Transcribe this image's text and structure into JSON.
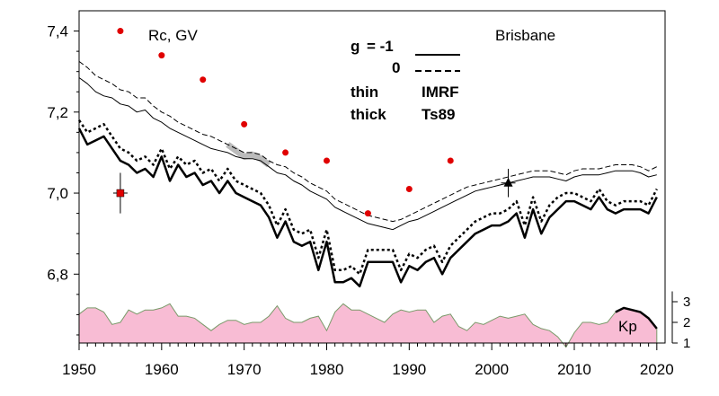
{
  "chart_data": {
    "type": "line",
    "title": "",
    "xlabel": "",
    "ylabel": "",
    "annotation_units": "Rc, GV",
    "station": "Brisbane",
    "kp_label": "Kp",
    "xlim": [
      1950,
      2021
    ],
    "ylim": [
      6.63,
      7.45
    ],
    "x_ticks": [
      "1950",
      "1960",
      "1970",
      "1980",
      "1990",
      "2000",
      "2010",
      "2020"
    ],
    "y_ticks": [
      "6,8",
      "7,0",
      "7,2",
      "7,4"
    ],
    "y_tick_values": [
      6.8,
      7.0,
      7.2,
      7.4
    ],
    "kp_ticks": [
      "1",
      "2",
      "3"
    ],
    "kp_range": [
      1,
      3.6
    ],
    "legend": {
      "row1": {
        "label": "g",
        "value": "= -1"
      },
      "row2": {
        "value": "0"
      },
      "row3": {
        "label": "thin",
        "model": "IMRF"
      },
      "row4": {
        "label": "thick",
        "model": "Ts89"
      }
    },
    "years": [
      1950,
      1951,
      1952,
      1953,
      1954,
      1955,
      1956,
      1957,
      1958,
      1959,
      1960,
      1961,
      1962,
      1963,
      1964,
      1965,
      1966,
      1967,
      1968,
      1969,
      1970,
      1971,
      1972,
      1973,
      1974,
      1975,
      1976,
      1977,
      1978,
      1979,
      1980,
      1981,
      1982,
      1983,
      1984,
      1985,
      1986,
      1987,
      1988,
      1989,
      1990,
      1991,
      1992,
      1993,
      1994,
      1995,
      1996,
      1997,
      1998,
      1999,
      2000,
      2001,
      2002,
      2003,
      2004,
      2005,
      2006,
      2007,
      2008,
      2009,
      2010,
      2011,
      2012,
      2013,
      2014,
      2015,
      2016,
      2017,
      2018,
      2019,
      2020
    ],
    "series": [
      {
        "name": "thin IMRF g=-1",
        "style": "thin-solid",
        "values": [
          7.285,
          7.27,
          7.25,
          7.24,
          7.235,
          7.22,
          7.215,
          7.2,
          7.205,
          7.185,
          7.175,
          7.16,
          7.15,
          7.14,
          7.13,
          7.12,
          7.11,
          7.105,
          7.1,
          7.09,
          7.085,
          7.085,
          7.08,
          7.065,
          7.05,
          7.045,
          7.03,
          7.02,
          7.005,
          6.995,
          6.985,
          6.965,
          6.955,
          6.945,
          6.935,
          6.925,
          6.92,
          6.915,
          6.91,
          6.92,
          6.93,
          6.935,
          6.945,
          6.955,
          6.965,
          6.975,
          6.985,
          6.995,
          7.005,
          7.01,
          7.015,
          7.02,
          7.025,
          7.03,
          7.035,
          7.04,
          7.04,
          7.04,
          7.035,
          7.03,
          7.04,
          7.045,
          7.045,
          7.045,
          7.05,
          7.055,
          7.055,
          7.055,
          7.05,
          7.04,
          7.045
        ]
      },
      {
        "name": "thin IMRF g=0",
        "style": "thin-dashed",
        "values": [
          7.325,
          7.31,
          7.29,
          7.28,
          7.27,
          7.255,
          7.25,
          7.235,
          7.235,
          7.215,
          7.2,
          7.19,
          7.175,
          7.165,
          7.155,
          7.145,
          7.14,
          7.13,
          7.12,
          7.11,
          7.1,
          7.1,
          7.095,
          7.08,
          7.07,
          7.065,
          7.05,
          7.04,
          7.025,
          7.015,
          7.005,
          6.985,
          6.975,
          6.965,
          6.955,
          6.945,
          6.94,
          6.935,
          6.93,
          6.935,
          6.945,
          6.955,
          6.965,
          6.975,
          6.985,
          6.995,
          7.005,
          7.015,
          7.02,
          7.025,
          7.03,
          7.035,
          7.04,
          7.045,
          7.05,
          7.055,
          7.055,
          7.055,
          7.05,
          7.045,
          7.055,
          7.06,
          7.06,
          7.06,
          7.065,
          7.07,
          7.07,
          7.07,
          7.065,
          7.055,
          7.065
        ]
      },
      {
        "name": "thick Ts89 g=-1",
        "style": "thick-solid",
        "values": [
          7.16,
          7.12,
          7.13,
          7.14,
          7.11,
          7.08,
          7.07,
          7.05,
          7.06,
          7.04,
          7.09,
          7.03,
          7.07,
          7.04,
          7.05,
          7.02,
          7.03,
          7.0,
          7.03,
          7.0,
          6.99,
          6.98,
          6.97,
          6.94,
          6.89,
          6.93,
          6.88,
          6.87,
          6.88,
          6.81,
          6.88,
          6.78,
          6.78,
          6.79,
          6.77,
          6.83,
          6.83,
          6.83,
          6.83,
          6.78,
          6.82,
          6.81,
          6.83,
          6.84,
          6.8,
          6.84,
          6.86,
          6.88,
          6.9,
          6.91,
          6.92,
          6.92,
          6.93,
          6.95,
          6.89,
          6.96,
          6.9,
          6.94,
          6.96,
          6.98,
          6.98,
          6.97,
          6.96,
          6.99,
          6.96,
          6.95,
          6.96,
          6.96,
          6.96,
          6.95,
          6.99
        ]
      },
      {
        "name": "thick Ts89 g=0",
        "style": "thick-dotted",
        "values": [
          7.18,
          7.15,
          7.16,
          7.17,
          7.14,
          7.11,
          7.1,
          7.08,
          7.09,
          7.07,
          7.11,
          7.06,
          7.09,
          7.07,
          7.08,
          7.05,
          7.06,
          7.03,
          7.06,
          7.03,
          7.02,
          7.01,
          7.0,
          6.97,
          6.92,
          6.96,
          6.91,
          6.9,
          6.91,
          6.84,
          6.91,
          6.81,
          6.81,
          6.82,
          6.8,
          6.86,
          6.86,
          6.86,
          6.86,
          6.81,
          6.85,
          6.84,
          6.86,
          6.87,
          6.83,
          6.87,
          6.89,
          6.91,
          6.93,
          6.94,
          6.95,
          6.95,
          6.96,
          6.98,
          6.92,
          6.99,
          6.93,
          6.97,
          6.99,
          7.0,
          7.0,
          6.99,
          6.98,
          7.01,
          6.98,
          6.97,
          6.98,
          6.98,
          6.98,
          6.97,
          7.01
        ]
      },
      {
        "name": "thick highlight",
        "style": "highlight-gray",
        "values_x": [
          1968,
          1969,
          1970,
          1971,
          1972,
          1973
        ],
        "values": [
          7.12,
          7.105,
          7.09,
          7.095,
          7.085,
          7.07
        ]
      }
    ],
    "rc_points": {
      "x": [
        1955,
        1960,
        1965,
        1970,
        1975,
        1980,
        1985,
        1990,
        1995
      ],
      "y": [
        7.4,
        7.34,
        7.28,
        7.17,
        7.1,
        7.08,
        6.95,
        7.01,
        7.08
      ]
    },
    "red_square": {
      "x": 1955,
      "y": 7.0,
      "err_low": 6.95,
      "err_high": 7.05
    },
    "black_triangle": {
      "x": 2002,
      "y": 7.025,
      "err_low": 6.99,
      "err_high": 7.06
    },
    "kp": {
      "years": [
        1950,
        1951,
        1952,
        1953,
        1954,
        1955,
        1956,
        1957,
        1958,
        1959,
        1960,
        1961,
        1962,
        1963,
        1964,
        1965,
        1966,
        1967,
        1968,
        1969,
        1970,
        1971,
        1972,
        1973,
        1974,
        1975,
        1976,
        1977,
        1978,
        1979,
        1980,
        1981,
        1982,
        1983,
        1984,
        1985,
        1986,
        1987,
        1988,
        1989,
        1990,
        1991,
        1992,
        1993,
        1994,
        1995,
        1996,
        1997,
        1998,
        1999,
        2000,
        2001,
        2002,
        2003,
        2004,
        2005,
        2006,
        2007,
        2008,
        2009,
        2010,
        2011,
        2012,
        2013,
        2014,
        2015,
        2016,
        2017,
        2018,
        2019,
        2020
      ],
      "values": [
        2.4,
        2.7,
        2.7,
        2.5,
        1.9,
        2.0,
        2.6,
        2.4,
        2.6,
        2.6,
        2.7,
        2.9,
        2.3,
        2.3,
        2.2,
        1.9,
        1.6,
        1.9,
        2.1,
        2.1,
        1.9,
        2.0,
        2.0,
        2.3,
        2.8,
        2.2,
        2.0,
        2.0,
        2.2,
        2.3,
        1.6,
        2.5,
        2.9,
        2.6,
        2.6,
        2.4,
        2.2,
        2.0,
        2.4,
        2.6,
        2.5,
        2.6,
        2.6,
        2.0,
        2.3,
        2.4,
        1.8,
        1.6,
        2.0,
        1.9,
        2.1,
        2.3,
        2.2,
        2.3,
        2.4,
        1.9,
        1.7,
        1.6,
        1.3,
        0.8,
        1.5,
        2.0,
        2.0,
        1.9,
        2.0,
        2.5,
        2.7,
        2.6,
        2.5,
        2.2,
        1.7
      ]
    }
  },
  "colors": {
    "kp_fill": "#f8bcd4",
    "kp_line": "#7a9a6a",
    "rc_point": "#e00000",
    "highlight": "#aaaaaa"
  }
}
